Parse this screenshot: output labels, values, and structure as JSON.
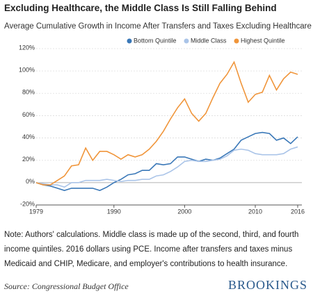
{
  "chart_data": {
    "type": "line",
    "title": "Excluding Healthcare, the Middle Class Is Still Falling Behind",
    "subtitle": "Average Cumulative Growth in Income After Transfers and Taxes Excluding Healthcare",
    "x": [
      1979,
      1980,
      1981,
      1982,
      1983,
      1984,
      1985,
      1986,
      1987,
      1988,
      1989,
      1990,
      1991,
      1992,
      1993,
      1994,
      1995,
      1996,
      1997,
      1998,
      1999,
      2000,
      2001,
      2002,
      2003,
      2004,
      2005,
      2006,
      2007,
      2008,
      2009,
      2010,
      2011,
      2012,
      2013,
      2014,
      2015,
      2016
    ],
    "series": [
      {
        "name": "Bottom Quintile",
        "color": "#3a78b8",
        "values": [
          0,
          -2,
          -3,
          -5,
          -7,
          -5,
          -5,
          -5,
          -5,
          -7,
          -4,
          0,
          3,
          7,
          8,
          11,
          11,
          17,
          16,
          17,
          23,
          23,
          21,
          19,
          21,
          20,
          22,
          26,
          30,
          38,
          41,
          44,
          45,
          44,
          38,
          40,
          35,
          41
        ]
      },
      {
        "name": "Middle Class",
        "color": "#aac4e8",
        "values": [
          0,
          -1,
          -2,
          -2,
          -4,
          0,
          0,
          2,
          2,
          2,
          3,
          2,
          1,
          2,
          2,
          3,
          3,
          6,
          7,
          10,
          14,
          19,
          20,
          19,
          19,
          20,
          21,
          24,
          29,
          30,
          29,
          26,
          25,
          25,
          25,
          26,
          30,
          32
        ]
      },
      {
        "name": "Highest Quintile",
        "color": "#f0953a",
        "values": [
          0,
          -2,
          -2,
          2,
          6,
          15,
          16,
          31,
          20,
          28,
          28,
          25,
          21,
          25,
          23,
          25,
          30,
          37,
          46,
          57,
          67,
          75,
          62,
          55,
          62,
          76,
          89,
          97,
          108,
          89,
          72,
          79,
          81,
          96,
          83,
          93,
          99,
          97
        ]
      }
    ],
    "xlim": [
      1979,
      2016
    ],
    "xticks": [
      1979,
      1990,
      2000,
      2010,
      2016
    ],
    "ylim": [
      -20,
      120
    ],
    "yticks": [
      {
        "value": -20,
        "label": "-20%"
      },
      {
        "value": 0,
        "label": "0%"
      },
      {
        "value": 20,
        "label": "20%"
      },
      {
        "value": 40,
        "label": "40%"
      },
      {
        "value": 60,
        "label": "60%"
      },
      {
        "value": 80,
        "label": "80%"
      },
      {
        "value": 100,
        "label": "100%"
      },
      {
        "value": 120,
        "label": "120%"
      }
    ],
    "grid": true,
    "note": "Note: Authors' calculations. Middle class is made up of the second, third, and fourth income quintiles. 2016 dollars using PCE. Income after transfers and taxes minus Medicaid and CHIP, Medicare, and employer's contributions to health insurance.",
    "source": "Source: Congressional Budget Office",
    "brand": "BROOKINGS"
  }
}
